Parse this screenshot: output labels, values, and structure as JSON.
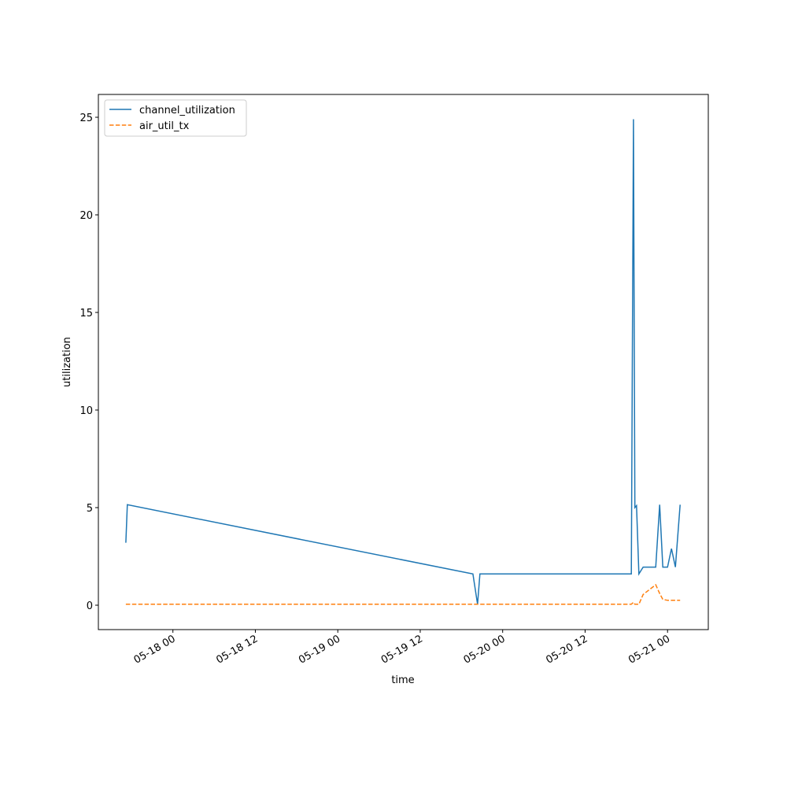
{
  "chart_data": {
    "type": "line",
    "x_label": "time",
    "y_label": "utilization",
    "x": [
      "05-17 17:09",
      "05-17 17:22",
      "05-19 19:40",
      "05-19 20:21",
      "05-19 20:41",
      "05-20 18:44",
      "05-20 19:02",
      "05-20 19:15",
      "05-20 19:29",
      "05-20 19:50",
      "05-20 20:27",
      "05-20 22:17",
      "05-20 22:51",
      "05-20 23:19",
      "05-21 00:00",
      "05-21 00:34",
      "05-21 01:09",
      "05-21 01:50"
    ],
    "series": [
      {
        "name": "channel_utilization",
        "color": "#1f77b4",
        "dash": false,
        "values": [
          3.2,
          5.15,
          1.6,
          0.05,
          1.6,
          1.6,
          24.9,
          5.0,
          5.1,
          1.6,
          1.95,
          1.95,
          5.15,
          1.95,
          1.95,
          2.9,
          1.95,
          5.15
        ]
      },
      {
        "name": "air_util_tx",
        "color": "#ff7f0e",
        "dash": true,
        "values": [
          0.05,
          0.05,
          0.05,
          0.05,
          0.05,
          0.05,
          0.15,
          0.05,
          0.05,
          0.05,
          0.55,
          1.05,
          0.6,
          0.3,
          0.25,
          0.25,
          0.25,
          0.25
        ]
      }
    ],
    "xlim": [
      "05-17 13:09",
      "05-21 05:56"
    ],
    "xticks": [
      {
        "value": "05-18 00:00",
        "label": "05-18 00"
      },
      {
        "value": "05-18 12:00",
        "label": "05-18 12"
      },
      {
        "value": "05-19 00:00",
        "label": "05-19 00"
      },
      {
        "value": "05-19 12:00",
        "label": "05-19 12"
      },
      {
        "value": "05-20 00:00",
        "label": "05-20 00"
      },
      {
        "value": "05-20 12:00",
        "label": "05-20 12"
      },
      {
        "value": "05-21 00:00",
        "label": "05-21 00"
      }
    ],
    "ylim": [
      -1.25,
      26.17
    ],
    "yticks": [
      0,
      5,
      10,
      15,
      20,
      25
    ],
    "legend": "upper left"
  }
}
